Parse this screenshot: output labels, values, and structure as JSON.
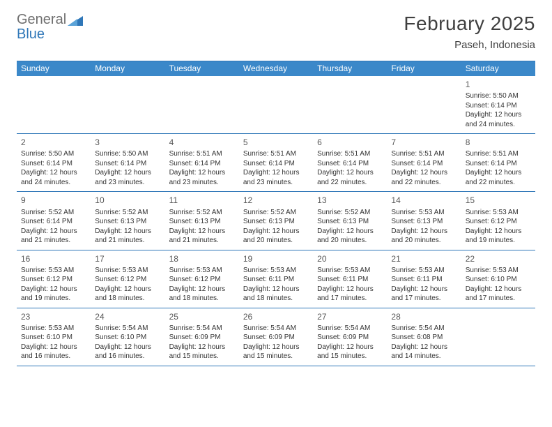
{
  "brand": {
    "line1": "General",
    "line2": "Blue",
    "color_text": "#6f6f6f",
    "color_accent": "#2f77b8"
  },
  "title": "February 2025",
  "location": "Paseh, Indonesia",
  "colors": {
    "header_bg": "#3b88c9",
    "header_text": "#ffffff",
    "rule": "#2f77b8",
    "body_text": "#333333",
    "daynum": "#595959",
    "page_bg": "#ffffff"
  },
  "day_labels": [
    "Sunday",
    "Monday",
    "Tuesday",
    "Wednesday",
    "Thursday",
    "Friday",
    "Saturday"
  ],
  "weeks": [
    [
      null,
      null,
      null,
      null,
      null,
      null,
      {
        "n": "1",
        "sunrise": "Sunrise: 5:50 AM",
        "sunset": "Sunset: 6:14 PM",
        "day1": "Daylight: 12 hours",
        "day2": "and 24 minutes."
      }
    ],
    [
      {
        "n": "2",
        "sunrise": "Sunrise: 5:50 AM",
        "sunset": "Sunset: 6:14 PM",
        "day1": "Daylight: 12 hours",
        "day2": "and 24 minutes."
      },
      {
        "n": "3",
        "sunrise": "Sunrise: 5:50 AM",
        "sunset": "Sunset: 6:14 PM",
        "day1": "Daylight: 12 hours",
        "day2": "and 23 minutes."
      },
      {
        "n": "4",
        "sunrise": "Sunrise: 5:51 AM",
        "sunset": "Sunset: 6:14 PM",
        "day1": "Daylight: 12 hours",
        "day2": "and 23 minutes."
      },
      {
        "n": "5",
        "sunrise": "Sunrise: 5:51 AM",
        "sunset": "Sunset: 6:14 PM",
        "day1": "Daylight: 12 hours",
        "day2": "and 23 minutes."
      },
      {
        "n": "6",
        "sunrise": "Sunrise: 5:51 AM",
        "sunset": "Sunset: 6:14 PM",
        "day1": "Daylight: 12 hours",
        "day2": "and 22 minutes."
      },
      {
        "n": "7",
        "sunrise": "Sunrise: 5:51 AM",
        "sunset": "Sunset: 6:14 PM",
        "day1": "Daylight: 12 hours",
        "day2": "and 22 minutes."
      },
      {
        "n": "8",
        "sunrise": "Sunrise: 5:51 AM",
        "sunset": "Sunset: 6:14 PM",
        "day1": "Daylight: 12 hours",
        "day2": "and 22 minutes."
      }
    ],
    [
      {
        "n": "9",
        "sunrise": "Sunrise: 5:52 AM",
        "sunset": "Sunset: 6:14 PM",
        "day1": "Daylight: 12 hours",
        "day2": "and 21 minutes."
      },
      {
        "n": "10",
        "sunrise": "Sunrise: 5:52 AM",
        "sunset": "Sunset: 6:13 PM",
        "day1": "Daylight: 12 hours",
        "day2": "and 21 minutes."
      },
      {
        "n": "11",
        "sunrise": "Sunrise: 5:52 AM",
        "sunset": "Sunset: 6:13 PM",
        "day1": "Daylight: 12 hours",
        "day2": "and 21 minutes."
      },
      {
        "n": "12",
        "sunrise": "Sunrise: 5:52 AM",
        "sunset": "Sunset: 6:13 PM",
        "day1": "Daylight: 12 hours",
        "day2": "and 20 minutes."
      },
      {
        "n": "13",
        "sunrise": "Sunrise: 5:52 AM",
        "sunset": "Sunset: 6:13 PM",
        "day1": "Daylight: 12 hours",
        "day2": "and 20 minutes."
      },
      {
        "n": "14",
        "sunrise": "Sunrise: 5:53 AM",
        "sunset": "Sunset: 6:13 PM",
        "day1": "Daylight: 12 hours",
        "day2": "and 20 minutes."
      },
      {
        "n": "15",
        "sunrise": "Sunrise: 5:53 AM",
        "sunset": "Sunset: 6:12 PM",
        "day1": "Daylight: 12 hours",
        "day2": "and 19 minutes."
      }
    ],
    [
      {
        "n": "16",
        "sunrise": "Sunrise: 5:53 AM",
        "sunset": "Sunset: 6:12 PM",
        "day1": "Daylight: 12 hours",
        "day2": "and 19 minutes."
      },
      {
        "n": "17",
        "sunrise": "Sunrise: 5:53 AM",
        "sunset": "Sunset: 6:12 PM",
        "day1": "Daylight: 12 hours",
        "day2": "and 18 minutes."
      },
      {
        "n": "18",
        "sunrise": "Sunrise: 5:53 AM",
        "sunset": "Sunset: 6:12 PM",
        "day1": "Daylight: 12 hours",
        "day2": "and 18 minutes."
      },
      {
        "n": "19",
        "sunrise": "Sunrise: 5:53 AM",
        "sunset": "Sunset: 6:11 PM",
        "day1": "Daylight: 12 hours",
        "day2": "and 18 minutes."
      },
      {
        "n": "20",
        "sunrise": "Sunrise: 5:53 AM",
        "sunset": "Sunset: 6:11 PM",
        "day1": "Daylight: 12 hours",
        "day2": "and 17 minutes."
      },
      {
        "n": "21",
        "sunrise": "Sunrise: 5:53 AM",
        "sunset": "Sunset: 6:11 PM",
        "day1": "Daylight: 12 hours",
        "day2": "and 17 minutes."
      },
      {
        "n": "22",
        "sunrise": "Sunrise: 5:53 AM",
        "sunset": "Sunset: 6:10 PM",
        "day1": "Daylight: 12 hours",
        "day2": "and 17 minutes."
      }
    ],
    [
      {
        "n": "23",
        "sunrise": "Sunrise: 5:53 AM",
        "sunset": "Sunset: 6:10 PM",
        "day1": "Daylight: 12 hours",
        "day2": "and 16 minutes."
      },
      {
        "n": "24",
        "sunrise": "Sunrise: 5:54 AM",
        "sunset": "Sunset: 6:10 PM",
        "day1": "Daylight: 12 hours",
        "day2": "and 16 minutes."
      },
      {
        "n": "25",
        "sunrise": "Sunrise: 5:54 AM",
        "sunset": "Sunset: 6:09 PM",
        "day1": "Daylight: 12 hours",
        "day2": "and 15 minutes."
      },
      {
        "n": "26",
        "sunrise": "Sunrise: 5:54 AM",
        "sunset": "Sunset: 6:09 PM",
        "day1": "Daylight: 12 hours",
        "day2": "and 15 minutes."
      },
      {
        "n": "27",
        "sunrise": "Sunrise: 5:54 AM",
        "sunset": "Sunset: 6:09 PM",
        "day1": "Daylight: 12 hours",
        "day2": "and 15 minutes."
      },
      {
        "n": "28",
        "sunrise": "Sunrise: 5:54 AM",
        "sunset": "Sunset: 6:08 PM",
        "day1": "Daylight: 12 hours",
        "day2": "and 14 minutes."
      },
      null
    ]
  ]
}
